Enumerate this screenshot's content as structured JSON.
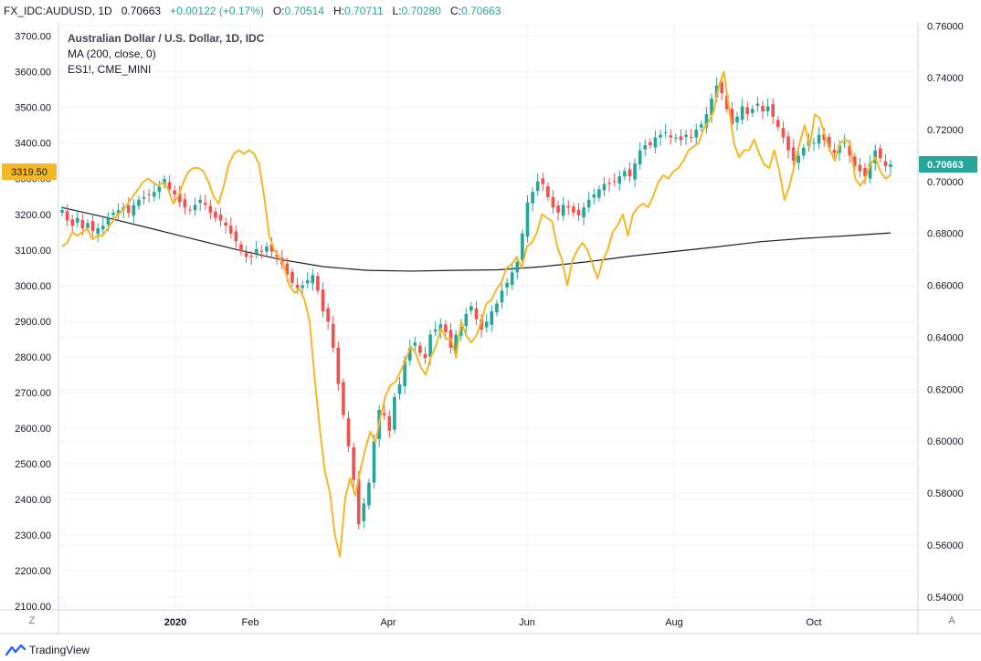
{
  "header": {
    "symbol": "FX_IDC:AUDUSD, 1D",
    "last": "0.70663",
    "change": "+0.00122 (+0.17%)",
    "o_label": "O:",
    "o": "0.70514",
    "h_label": "H:",
    "h": "0.70711",
    "l_label": "L:",
    "l": "0.70280",
    "c_label": "C:",
    "c": "0.70663"
  },
  "legend": {
    "title": "Australian Dollar / U.S. Dollar, 1D, IDC",
    "ma": "MA (200, close, 0)",
    "compare": "ES1!, CME_MINI"
  },
  "footer": {
    "brand": "TradingView"
  },
  "buttons": {
    "zoom": "Z",
    "auto": "A"
  },
  "chart_data": {
    "type": "line",
    "x_tick_labels": [
      "2020",
      "Feb",
      "Apr",
      "Jun",
      "Aug",
      "Oct"
    ],
    "left_axis": {
      "ylim": [
        2090,
        3740
      ],
      "ticks": [
        "3700.00",
        "3600.00",
        "3500.00",
        "3400.00",
        "3300.00",
        "3200.00",
        "3100.00",
        "3000.00",
        "2900.00",
        "2800.00",
        "2700.00",
        "2600.00",
        "2500.00",
        "2400.00",
        "2300.00",
        "2200.00",
        "2100.00"
      ],
      "last_value_label": "3319.50"
    },
    "right_axis": {
      "ylim": [
        0.535,
        0.7615
      ],
      "ticks": [
        "0.76000",
        "0.74000",
        "0.72000",
        "0.70000",
        "0.68000",
        "0.66000",
        "0.64000",
        "0.62000",
        "0.60000",
        "0.58000",
        "0.56000",
        "0.54000"
      ],
      "last_value_label": "0.70663"
    },
    "grid": true,
    "colors": {
      "up": "#26a69a",
      "down": "#ef5350",
      "es": "#f4b826",
      "ma": "#1e1e1e",
      "label_bg": "#f4b826",
      "price_label_bg": "#26a69a"
    },
    "series": [
      {
        "type": "candlestick",
        "axis": "right",
        "values_close": [
          0.689,
          0.685,
          0.683,
          0.686,
          0.682,
          0.684,
          0.681,
          0.682,
          0.683,
          0.686,
          0.688,
          0.689,
          0.69,
          0.688,
          0.691,
          0.693,
          0.694,
          0.695,
          0.696,
          0.698,
          0.701,
          0.697,
          0.695,
          0.692,
          0.69,
          0.689,
          0.691,
          0.693,
          0.691,
          0.688,
          0.686,
          0.685,
          0.683,
          0.68,
          0.677,
          0.673,
          0.671,
          0.671,
          0.674,
          0.673,
          0.675,
          0.673,
          0.671,
          0.668,
          0.664,
          0.661,
          0.659,
          0.66,
          0.662,
          0.664,
          0.658,
          0.65,
          0.646,
          0.636,
          0.622,
          0.61,
          0.598,
          0.585,
          0.568,
          0.576,
          0.584,
          0.6,
          0.612,
          0.61,
          0.604,
          0.617,
          0.622,
          0.631,
          0.636,
          0.638,
          0.634,
          0.632,
          0.641,
          0.643,
          0.645,
          0.642,
          0.636,
          0.641,
          0.644,
          0.649,
          0.652,
          0.647,
          0.643,
          0.646,
          0.65,
          0.653,
          0.658,
          0.661,
          0.665,
          0.669,
          0.68,
          0.692,
          0.696,
          0.7,
          0.699,
          0.694,
          0.69,
          0.688,
          0.691,
          0.69,
          0.688,
          0.687,
          0.69,
          0.693,
          0.695,
          0.697,
          0.699,
          0.699,
          0.7,
          0.702,
          0.704,
          0.702,
          0.707,
          0.712,
          0.714,
          0.714,
          0.717,
          0.718,
          0.719,
          0.717,
          0.717,
          0.716,
          0.718,
          0.717,
          0.72,
          0.722,
          0.726,
          0.732,
          0.737,
          0.734,
          0.728,
          0.722,
          0.725,
          0.729,
          0.726,
          0.728,
          0.73,
          0.727,
          0.729,
          0.725,
          0.721,
          0.717,
          0.712,
          0.708,
          0.71,
          0.713,
          0.716,
          0.715,
          0.718,
          0.716,
          0.713,
          0.711,
          0.714,
          0.715,
          0.71,
          0.706,
          0.704,
          0.702,
          0.707,
          0.712,
          0.709,
          0.706,
          0.7066
        ]
      },
      {
        "type": "line",
        "name": "ES1!, CME_MINI",
        "axis": "left",
        "values": [
          3110,
          3120,
          3150,
          3140,
          3150,
          3160,
          3130,
          3140,
          3140,
          3160,
          3180,
          3200,
          3210,
          3230,
          3250,
          3270,
          3290,
          3300,
          3290,
          3280,
          3290,
          3270,
          3230,
          3250,
          3290,
          3320,
          3330,
          3330,
          3320,
          3290,
          3250,
          3230,
          3280,
          3340,
          3370,
          3380,
          3370,
          3380,
          3370,
          3340,
          3250,
          3140,
          3100,
          3080,
          3050,
          3000,
          2980,
          2990,
          2960,
          2900,
          2740,
          2600,
          2480,
          2420,
          2300,
          2240,
          2400,
          2460,
          2410,
          2480,
          2540,
          2590,
          2560,
          2630,
          2690,
          2720,
          2730,
          2760,
          2790,
          2830,
          2810,
          2770,
          2750,
          2800,
          2830,
          2880,
          2850,
          2850,
          2800,
          2900,
          2860,
          2840,
          2860,
          2900,
          2950,
          2960,
          2990,
          3010,
          3050,
          3060,
          3080,
          3050,
          3110,
          3120,
          3150,
          3200,
          3190,
          3180,
          3110,
          3070,
          3000,
          3070,
          3100,
          3120,
          3100,
          3060,
          3020,
          3070,
          3100,
          3150,
          3170,
          3200,
          3140,
          3200,
          3220,
          3230,
          3220,
          3250,
          3290,
          3310,
          3300,
          3320,
          3330,
          3350,
          3380,
          3390,
          3400,
          3440,
          3460,
          3490,
          3560,
          3600,
          3500,
          3400,
          3360,
          3380,
          3380,
          3410,
          3370,
          3340,
          3330,
          3380,
          3320,
          3240,
          3280,
          3340,
          3400,
          3450,
          3390,
          3480,
          3470,
          3420,
          3380,
          3350,
          3400,
          3410,
          3400,
          3300,
          3280,
          3300,
          3340,
          3360,
          3320,
          3300,
          3310
        ]
      },
      {
        "type": "line",
        "name": "MA (200, close, 0)",
        "axis": "right",
        "values": [
          0.69,
          0.6862,
          0.6821,
          0.6779,
          0.6738,
          0.67,
          0.6672,
          0.6658,
          0.6655,
          0.6658,
          0.666,
          0.6672,
          0.669,
          0.6712,
          0.673,
          0.6748,
          0.6768,
          0.6781,
          0.6791,
          0.6802
        ]
      }
    ]
  }
}
